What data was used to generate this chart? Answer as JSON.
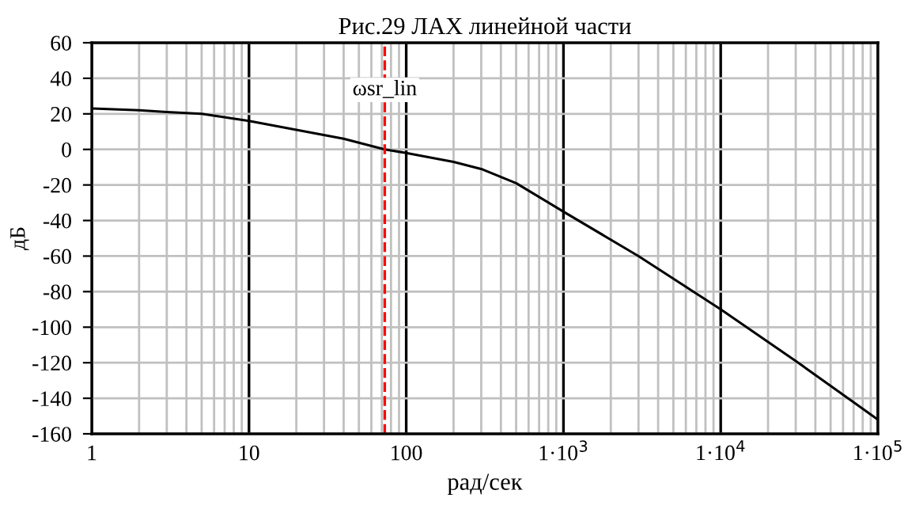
{
  "chart_data": {
    "type": "line",
    "title": "Рис.29 ЛАХ линейной части",
    "xlabel": "рад/сек",
    "ylabel": "дБ",
    "log": "x",
    "series": [
      {
        "color": "#000000",
        "x": [
          1,
          2,
          3,
          5,
          10,
          20,
          40,
          73,
          100,
          200,
          300,
          500,
          1000,
          3000,
          10000,
          30000,
          100000
        ],
        "values": [
          23,
          22,
          21,
          20,
          16,
          11,
          6,
          0,
          -2,
          -7,
          -11,
          -19,
          -35,
          -60,
          -90,
          -119,
          -152
        ]
      }
    ],
    "xlim": [
      1,
      100000
    ],
    "xticks": [
      1,
      10,
      100,
      {
        "value": 1000,
        "label": "1·10$^{3}$"
      },
      {
        "value": 10000,
        "label": "1·10$^{4}$"
      },
      {
        "value": 100000,
        "label": "1·10$^{5}$"
      }
    ],
    "ylim": [
      -160,
      60
    ],
    "yticks": [
      -160,
      -140,
      -120,
      -100,
      -80,
      -60,
      -40,
      -20,
      0,
      20,
      40,
      60
    ],
    "grid": true,
    "marker": "none",
    "line_style": "solid",
    "ref_lines": [
      {
        "axis": "x",
        "value": 73,
        "label": "ωsr_lin",
        "color": "#ff0000",
        "line_style": "dashed"
      }
    ]
  }
}
